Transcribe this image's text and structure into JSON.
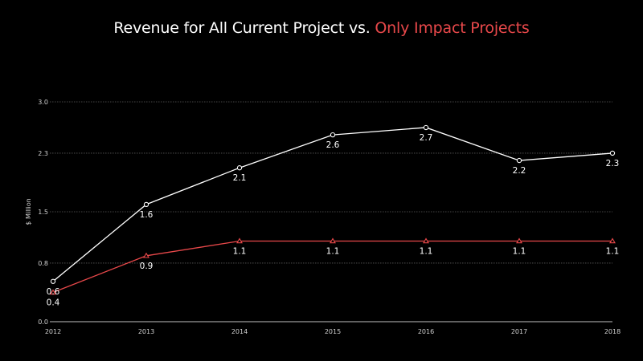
{
  "chart_data": {
    "type": "line",
    "title": "Revenue for All Current Project vs. Only Impact Projects",
    "title_parts": [
      {
        "text": "Revenue for All Current Project vs. ",
        "highlight": false
      },
      {
        "text": "Only Impact Projects",
        "highlight": true
      }
    ],
    "xlabel": "",
    "ylabel": "$ Million",
    "categories": [
      "2012",
      "2013",
      "2014",
      "2015",
      "2016",
      "2017",
      "2018"
    ],
    "yticks": [
      0.0,
      0.8,
      1.5,
      2.3,
      3.0
    ],
    "ytick_labels": [
      "0.0",
      "0.8",
      "1.5",
      "2.3",
      "3.0"
    ],
    "ylim": [
      0,
      3.0
    ],
    "grid": true,
    "series": [
      {
        "name": "All Current Projects",
        "color": "#ffffff",
        "marker": "circle",
        "values": [
          0.55,
          1.6,
          2.1,
          2.55,
          2.65,
          2.2,
          2.3
        ],
        "labels": [
          "0.6",
          "1.6",
          "2.1",
          "2.6",
          "2.7",
          "2.2",
          "2.3"
        ]
      },
      {
        "name": "Only Impact Projects",
        "color": "#e8484a",
        "marker": "triangle",
        "values": [
          0.4,
          0.9,
          1.1,
          1.1,
          1.1,
          1.1,
          1.1
        ],
        "labels": [
          "0.4",
          "0.9",
          "1.1",
          "1.1",
          "1.1",
          "1.1",
          "1.1"
        ]
      }
    ]
  }
}
